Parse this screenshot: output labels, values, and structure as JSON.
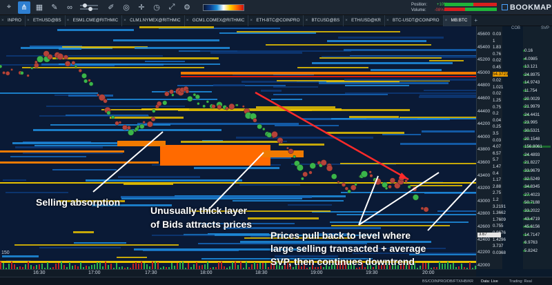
{
  "toolbar": {
    "icons": [
      "crosshair-box-icon",
      "share-icon",
      "grid-icon",
      "pencil-icon",
      "link-icon",
      "sliders-icon",
      "brush-icon",
      "target-icon",
      "crosshair-icon",
      "clock-icon",
      "resize-icon",
      "settings-icon"
    ],
    "position_label": "Position:",
    "position_value": "+10%",
    "volume_label": "Volume:",
    "volume_value": "-08%",
    "brand": "BOOKMAP"
  },
  "tabs": [
    {
      "label": "INPRO",
      "active": false
    },
    {
      "label": "ETHUSD@BS",
      "active": false
    },
    {
      "label": "ESM1.CME@RITHMIC",
      "active": false
    },
    {
      "label": "CLM1.NYMEX@RITHMIC",
      "active": false
    },
    {
      "label": "GCM1.COMEX@RITHMIC",
      "active": false
    },
    {
      "label": "ETH-BTC@COINPRO",
      "active": false
    },
    {
      "label": "BTCUSD@BS",
      "active": false
    },
    {
      "label": "ETH/USD@KR",
      "active": false
    },
    {
      "label": "BTC-USDT@COINPRO",
      "active": false
    },
    {
      "label": "MB:BTC",
      "active": true
    }
  ],
  "columns": {
    "cob": "COB",
    "svp": "SVP"
  },
  "price_axis": [
    "45600",
    "45400",
    "45200",
    "45000",
    "44800",
    "44600",
    "44400",
    "44200",
    "44000",
    "43800",
    "43600",
    "43400",
    "43200",
    "43000",
    "42800",
    "42600",
    "42400",
    "42200",
    "42000"
  ],
  "cob_values": [
    "0.03",
    "1",
    "1.83",
    "0.76",
    "0.02",
    "0.45",
    "54.3723",
    "0.02",
    "1.021",
    "0.02",
    "1.25",
    "0.75",
    "0.2",
    "0.04",
    "0.25",
    "3.5",
    "0.03",
    "4.07",
    "6.57",
    "5.7",
    "1.47",
    "0.4",
    "1.17",
    "2.88",
    "2.75",
    "1.2",
    "3.2191",
    "1.3662",
    "1.7609",
    "0.755",
    "0.9676",
    "1.4296",
    "3.737",
    "0.0368"
  ],
  "svp_values": [
    "0.16",
    "4.0985",
    "13.121",
    "24.8975",
    "14.9743",
    "11.754",
    "20.0029",
    "21.9979",
    "24.4431",
    "23.995",
    "30.5321",
    "20.1548",
    "156.8061",
    "24.4893",
    "21.8227",
    "33.9679",
    "32.5249",
    "34.8345",
    "27.4023",
    "50.7188",
    "33.2022",
    "43.4719",
    "45.6156",
    "14.7147",
    "6.9763",
    "5.8242"
  ],
  "current_price": "3.67",
  "time_axis": [
    "16:30",
    "17:00",
    "17:30",
    "18:00",
    "18:30",
    "19:00",
    "19:30",
    "20:00"
  ],
  "y_indicator": "150",
  "annotations": {
    "selling_absorption": "Selling absorption",
    "thick_layer_line1": "Unusually thick layer",
    "thick_layer_line2": "of Bids attracts prices",
    "pullback_line1": "Prices pull back to level where",
    "pullback_line2": "large selling transacted + average",
    "pullback_line3": "SVP, then continues downtrend"
  },
  "status": {
    "feed": "BS/COINPRO/DB/FTX/HB/KR",
    "data": "Data: Live",
    "trading": "Trading: Real"
  }
}
